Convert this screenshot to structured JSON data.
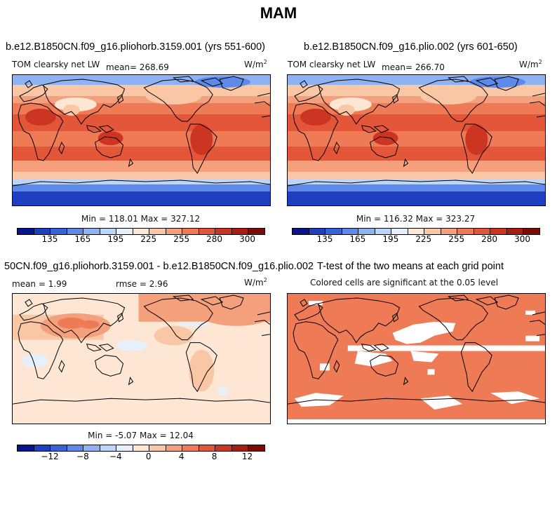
{
  "season": "MAM",
  "panels": [
    {
      "title": "b.e12.B1850CN.f09_g16.pliohorb.3159.001 (yrs 551-600)",
      "left_label": "TOM clearsky net LW",
      "mean_label": "mean= 268.69",
      "units": "W/m",
      "units_sup": "2",
      "stats": "Min = 118.01 Max = 327.12"
    },
    {
      "title": "b.e12.B1850CN.f09_g16.plio.002 (yrs 601-650)",
      "left_label": "TOM clearsky net LW",
      "mean_label": "mean= 266.70",
      "units": "W/m",
      "units_sup": "2",
      "stats": "Min = 116.32 Max = 323.27"
    },
    {
      "title": "50CN.f09_g16.pliohorb.3159.001 - b.e12.B1850CN.f09_g16.plio.002",
      "mean_label": "mean =    1.99",
      "rmse_label": "rmse =    2.96",
      "units": "W/m",
      "units_sup": "2",
      "stats": "Min =   -5.07 Max =   12.04"
    },
    {
      "title": "T-test of the two means at each grid point",
      "subtitle": "Colored cells are significant at the 0.05 level"
    }
  ],
  "colorbar_abs": {
    "colors": [
      "#08148c",
      "#1d3fc0",
      "#3563d8",
      "#5d8ae8",
      "#8fb3f2",
      "#bcd6fa",
      "#e6f0fd",
      "#fde7d4",
      "#f9c7a6",
      "#f4a07c",
      "#ee7a56",
      "#e4563a",
      "#cc3522",
      "#a81c11",
      "#7a0c05"
    ],
    "ticks": [
      "135",
      "165",
      "195",
      "225",
      "255",
      "280",
      "300"
    ]
  },
  "colorbar_diff": {
    "colors": [
      "#08148c",
      "#1d3fc0",
      "#3563d8",
      "#5d8ae8",
      "#8fb3f2",
      "#bcd6fa",
      "#e6f0fd",
      "#fde7d4",
      "#f9c7a6",
      "#f4a07c",
      "#ee7a56",
      "#e4563a",
      "#cc3522",
      "#a81c11",
      "#7a0c05"
    ],
    "ticks": [
      "−12",
      "−8",
      "−4",
      "0",
      "4",
      "8",
      "12"
    ]
  }
}
